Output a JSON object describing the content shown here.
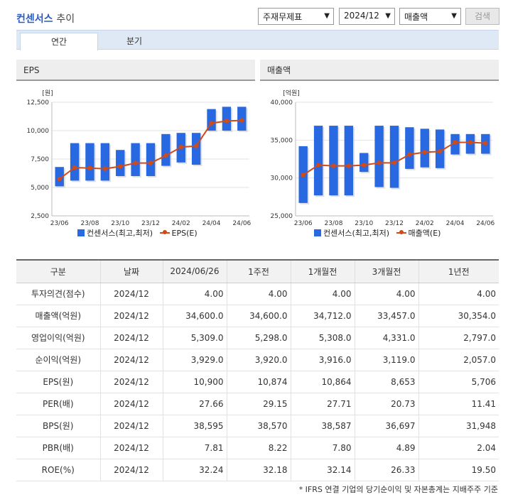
{
  "header": {
    "title_main": "컨센서스",
    "title_sub": "추이",
    "select_type": "주재무제표",
    "select_period": "2024/12",
    "select_item": "매출액",
    "search_label": "검색"
  },
  "tabs": [
    {
      "label": "연간"
    },
    {
      "label": "분기"
    }
  ],
  "chart_data": [
    {
      "type": "bar",
      "panel_title": "EPS",
      "unit": "[원]",
      "categories": [
        "23/06",
        "23/07",
        "23/08",
        "23/09",
        "23/10",
        "23/11",
        "23/12",
        "24/01",
        "24/02",
        "24/03",
        "24/04",
        "24/05",
        "24/06"
      ],
      "x_tick_labels": [
        "23/06",
        "23/08",
        "23/10",
        "23/12",
        "24/02",
        "24/04",
        "24/06"
      ],
      "series": [
        {
          "name": "컨센서스(최고,최저)",
          "type": "range-bar",
          "high": [
            6800,
            8900,
            8900,
            8900,
            8300,
            8900,
            8900,
            9700,
            9800,
            9800,
            11900,
            12100,
            12100
          ],
          "low": [
            5100,
            5600,
            5600,
            5600,
            6000,
            6000,
            6000,
            6900,
            7200,
            7000,
            10000,
            10000,
            10000
          ]
        },
        {
          "name": "EPS(E)",
          "type": "line",
          "values": [
            5750,
            6750,
            6700,
            6650,
            6850,
            7150,
            7150,
            7800,
            8550,
            8650,
            10650,
            10850,
            10900
          ]
        }
      ],
      "ylim": [
        2500,
        12500
      ],
      "y_ticks": [
        2500,
        5000,
        7500,
        10000,
        12500
      ],
      "y_tick_labels": [
        "2,500",
        "5,000",
        "7,500",
        "10,000",
        "12,500"
      ],
      "legend": "bottom"
    },
    {
      "type": "bar",
      "panel_title": "매출액",
      "unit": "[억원]",
      "categories": [
        "23/06",
        "23/07",
        "23/08",
        "23/09",
        "23/10",
        "23/11",
        "23/12",
        "24/01",
        "24/02",
        "24/03",
        "24/04",
        "24/05",
        "24/06"
      ],
      "x_tick_labels": [
        "23/06",
        "23/08",
        "23/10",
        "23/12",
        "24/02",
        "24/04",
        "24/06"
      ],
      "series": [
        {
          "name": "컨센서스(최고,최저)",
          "type": "range-bar",
          "high": [
            34200,
            36900,
            36900,
            36900,
            33300,
            36900,
            36900,
            36700,
            36500,
            36400,
            35800,
            35800,
            35800
          ],
          "low": [
            26700,
            27700,
            27700,
            27700,
            30800,
            28800,
            28700,
            31200,
            31400,
            31300,
            33100,
            33200,
            33200
          ]
        },
        {
          "name": "매출액(E)",
          "type": "line",
          "values": [
            30400,
            31700,
            31600,
            31600,
            31700,
            32000,
            32000,
            33100,
            33400,
            33500,
            34700,
            34700,
            34600
          ]
        }
      ],
      "ylim": [
        25000,
        40000
      ],
      "y_ticks": [
        25000,
        30000,
        35000,
        40000
      ],
      "y_tick_labels": [
        "25,000",
        "30,000",
        "35,000",
        "40,000"
      ],
      "legend": "bottom"
    }
  ],
  "table": {
    "headers": [
      "구분",
      "날짜",
      "2024/06/26",
      "1주전",
      "1개월전",
      "3개월전",
      "1년전"
    ],
    "rows": [
      {
        "label": "투자의견(점수)",
        "date": "2024/12",
        "v": [
          "4.00",
          "4.00",
          "4.00",
          "4.00",
          "4.00"
        ]
      },
      {
        "label": "매출액(억원)",
        "date": "2024/12",
        "v": [
          "34,600.0",
          "34,600.0",
          "34,712.0",
          "33,457.0",
          "30,354.0"
        ]
      },
      {
        "label": "영업이익(억원)",
        "date": "2024/12",
        "v": [
          "5,309.0",
          "5,298.0",
          "5,308.0",
          "4,331.0",
          "2,797.0"
        ]
      },
      {
        "label": "순이익(억원)",
        "date": "2024/12",
        "v": [
          "3,929.0",
          "3,920.0",
          "3,916.0",
          "3,119.0",
          "2,057.0"
        ]
      },
      {
        "label": "EPS(원)",
        "date": "2024/12",
        "v": [
          "10,900",
          "10,874",
          "10,864",
          "8,653",
          "5,706"
        ]
      },
      {
        "label": "PER(배)",
        "date": "2024/12",
        "v": [
          "27.66",
          "29.15",
          "27.71",
          "20.73",
          "11.41"
        ]
      },
      {
        "label": "BPS(원)",
        "date": "2024/12",
        "v": [
          "38,595",
          "38,570",
          "38,587",
          "36,697",
          "31,948"
        ]
      },
      {
        "label": "PBR(배)",
        "date": "2024/12",
        "v": [
          "7.81",
          "8.22",
          "7.80",
          "4.89",
          "2.04"
        ]
      },
      {
        "label": "ROE(%)",
        "date": "2024/12",
        "v": [
          "32.24",
          "32.18",
          "32.14",
          "26.33",
          "19.50"
        ]
      }
    ]
  },
  "footnote": "* IFRS 연결 기업의 당기순이익 및 자본총계는 지배주주 기준",
  "colors": {
    "bar": "#2868e0",
    "line": "#d04a1a"
  }
}
